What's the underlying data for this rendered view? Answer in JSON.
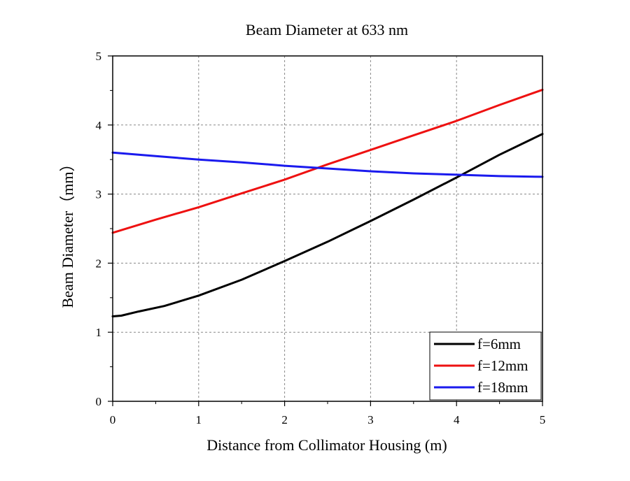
{
  "chart_data": {
    "type": "line",
    "title": "Beam Diameter at 633 nm",
    "xlabel": "Distance from Collimator Housing (m)",
    "ylabel": "Beam Diameter（mm）",
    "xlim": [
      0,
      5
    ],
    "ylim": [
      0,
      5
    ],
    "xticks": [
      0,
      1,
      2,
      3,
      4,
      5
    ],
    "yticks": [
      0,
      1,
      2,
      3,
      4,
      5
    ],
    "grid": true,
    "legend_position": "bottom-right",
    "series": [
      {
        "name": "f=6mm",
        "color": "#000000",
        "x": [
          0,
          0.1,
          0.3,
          0.6,
          1.0,
          1.5,
          2.0,
          2.5,
          3.0,
          3.5,
          4.0,
          4.5,
          5.0
        ],
        "y": [
          1.23,
          1.24,
          1.3,
          1.38,
          1.53,
          1.76,
          2.03,
          2.31,
          2.61,
          2.92,
          3.24,
          3.57,
          3.87
        ]
      },
      {
        "name": "f=12mm",
        "color": "#ee1111",
        "x": [
          0,
          0.5,
          1.0,
          1.5,
          2.0,
          2.5,
          3.0,
          3.5,
          4.0,
          4.5,
          5.0
        ],
        "y": [
          2.44,
          2.63,
          2.81,
          3.01,
          3.21,
          3.43,
          3.64,
          3.85,
          4.06,
          4.29,
          4.51
        ]
      },
      {
        "name": "f=18mm",
        "color": "#1a1aee",
        "x": [
          0,
          0.5,
          1.0,
          1.5,
          2.0,
          2.5,
          3.0,
          3.5,
          4.0,
          4.5,
          5.0
        ],
        "y": [
          3.6,
          3.55,
          3.5,
          3.46,
          3.41,
          3.37,
          3.33,
          3.3,
          3.28,
          3.26,
          3.25
        ]
      }
    ]
  }
}
